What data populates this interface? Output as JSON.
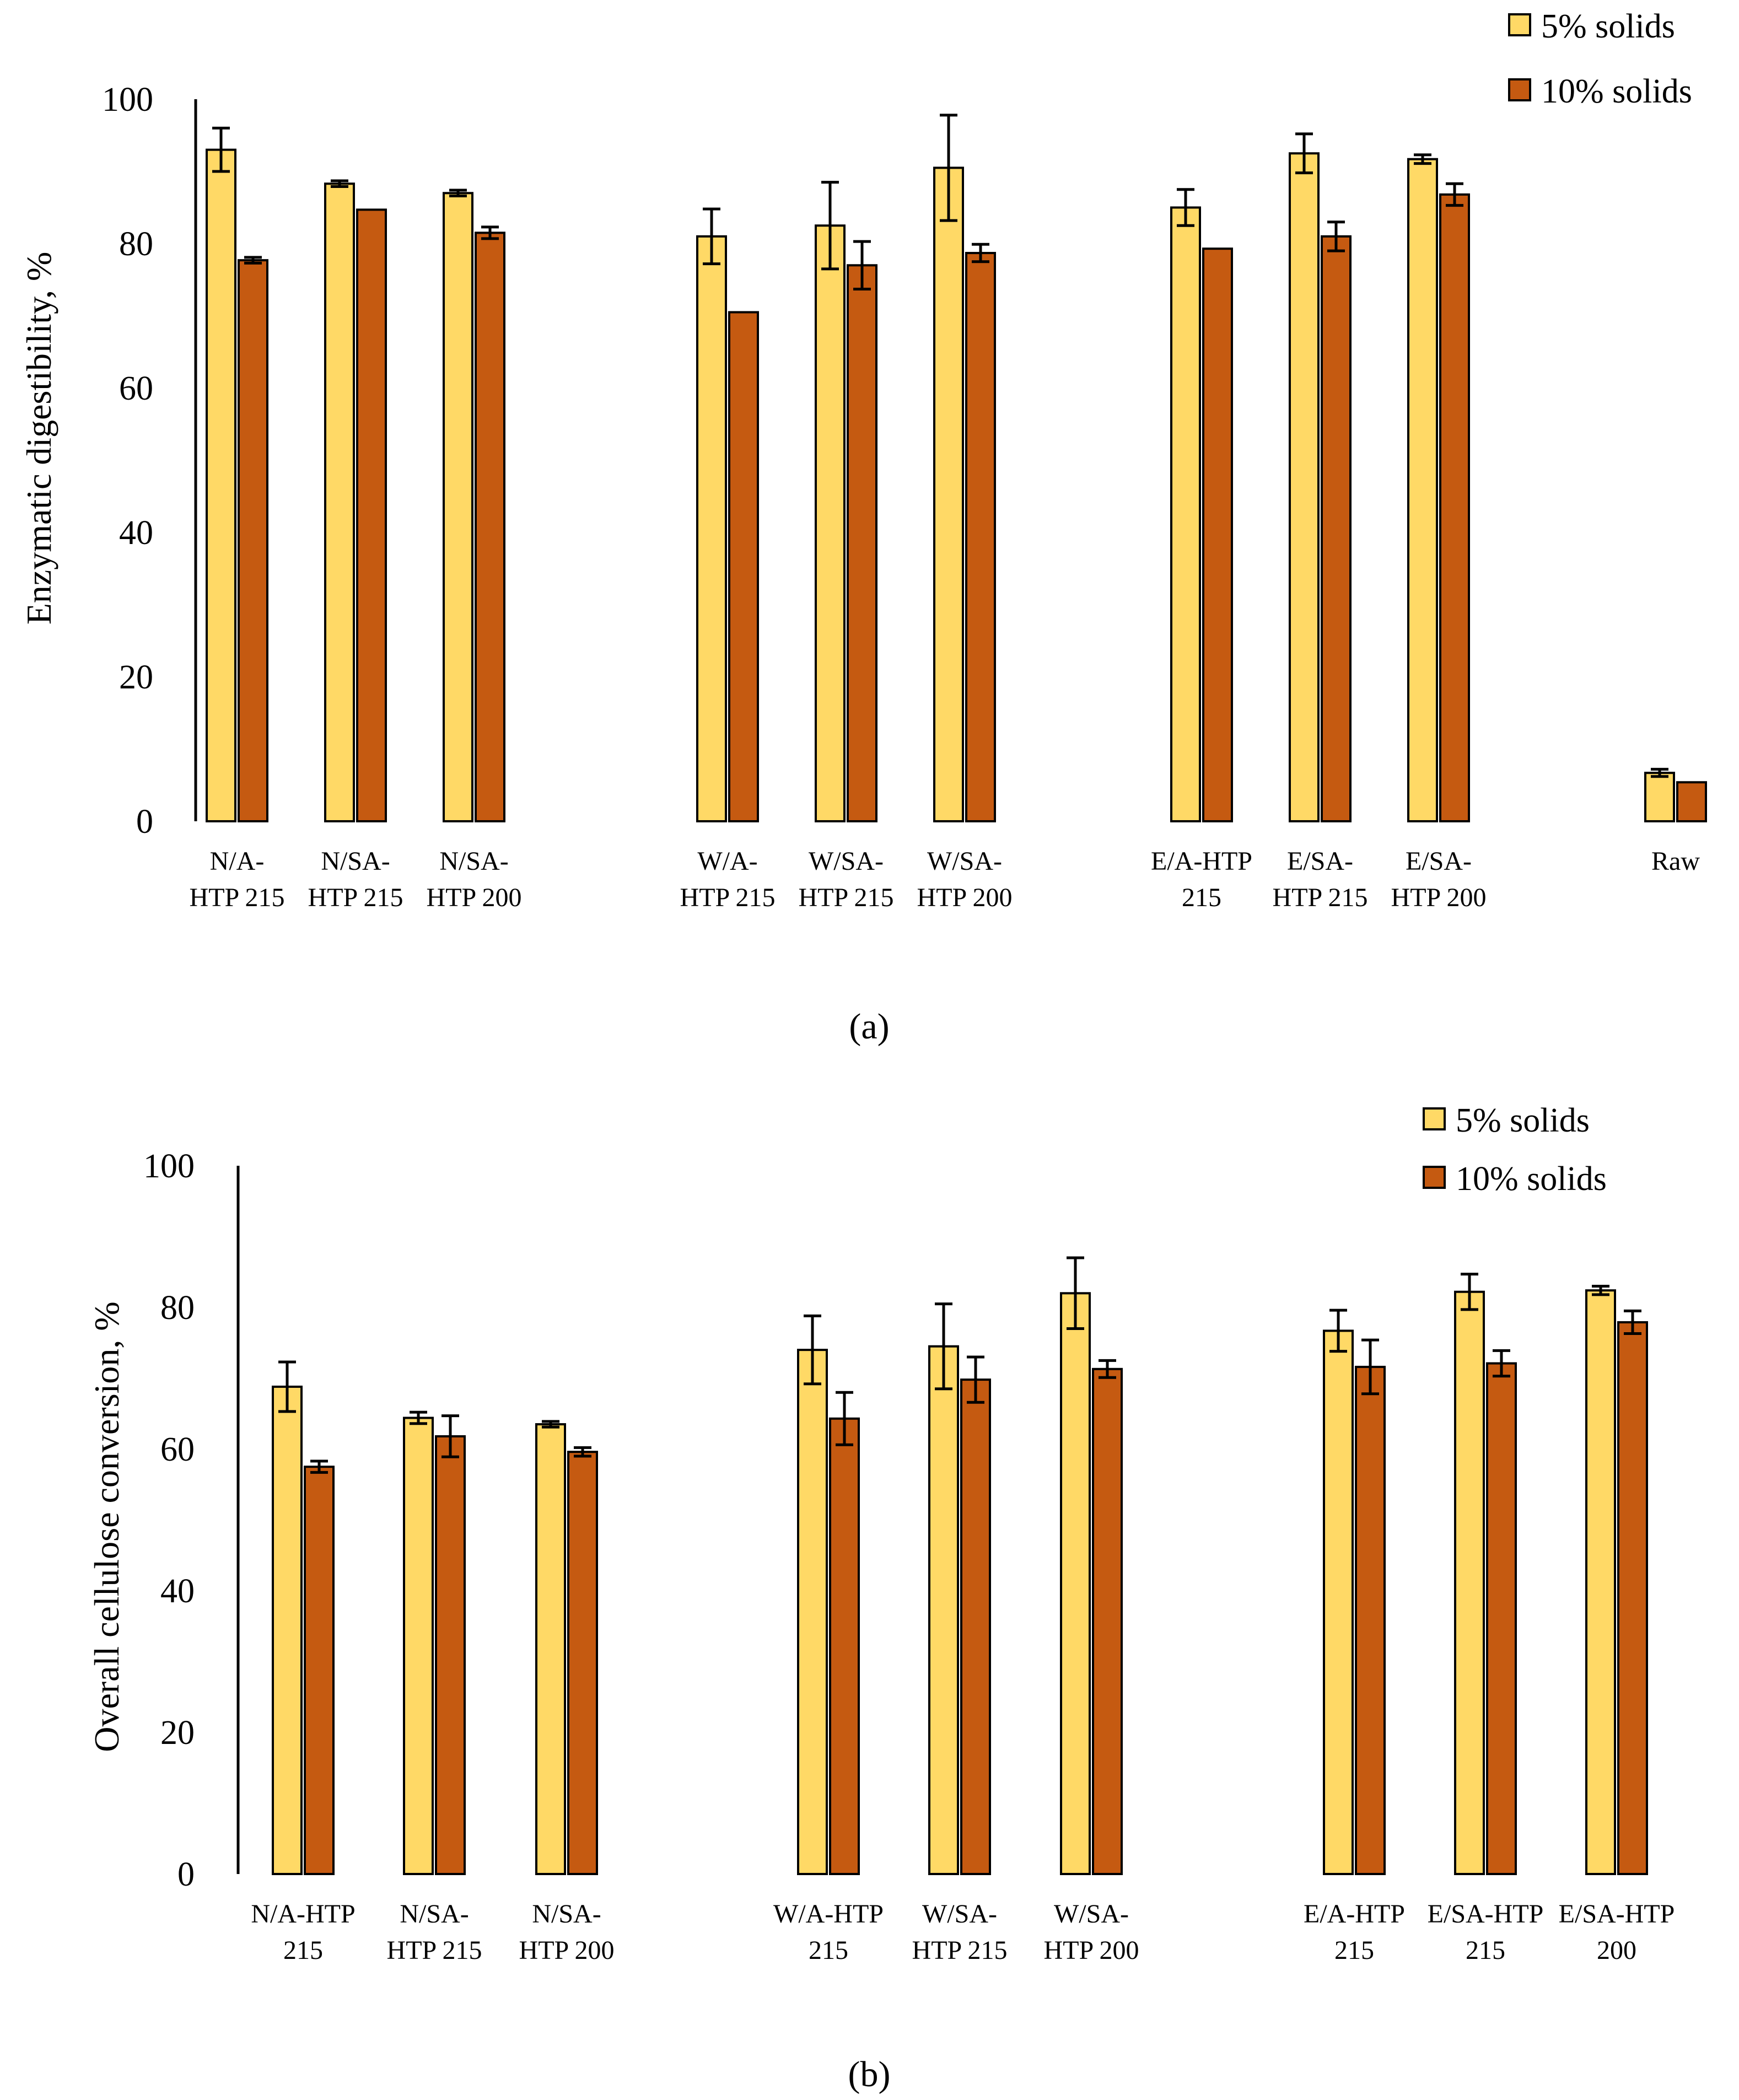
{
  "colors": {
    "solids_5": "#ffd966",
    "solids_10": "#c55a11",
    "stroke": "#000000"
  },
  "chart_data": [
    {
      "type": "bar",
      "panel_label": "(a)",
      "ylabel": "Enzymatic digestibility, %",
      "ylim": [
        0,
        100
      ],
      "yticks": [
        0,
        20,
        40,
        60,
        80,
        100
      ],
      "categories": [
        [
          "N/A-",
          "HTP 215"
        ],
        [
          "N/SA-",
          "HTP 215"
        ],
        [
          "N/SA-",
          "HTP 200"
        ],
        [
          "W/A-",
          "HTP 215"
        ],
        [
          "W/SA-",
          "HTP 215"
        ],
        [
          "W/SA-",
          "HTP 200"
        ],
        [
          "E/A-HTP",
          "215"
        ],
        [
          "E/SA-",
          "HTP 215"
        ],
        [
          "E/SA-",
          "HTP 200"
        ],
        [
          "Raw"
        ]
      ],
      "groups": [
        [
          0,
          1,
          2
        ],
        [
          3,
          4,
          5
        ],
        [
          6,
          7,
          8
        ],
        [
          9
        ]
      ],
      "legend": "top-right",
      "series": [
        {
          "name": "5% solids",
          "values": [
            93.0,
            88.3,
            87.0,
            81.0,
            82.5,
            90.5,
            85.0,
            92.5,
            91.7,
            6.7
          ],
          "errors": [
            3.0,
            0.4,
            0.4,
            3.8,
            6.0,
            7.3,
            2.5,
            2.7,
            0.6,
            0.5
          ]
        },
        {
          "name": "10% solids",
          "values": [
            77.7,
            84.7,
            81.5,
            70.5,
            77.0,
            78.7,
            79.3,
            81.0,
            86.8,
            5.4
          ],
          "errors": [
            0.4,
            0.0,
            0.8,
            0.0,
            3.3,
            1.2,
            0.0,
            2.0,
            1.5,
            0.0
          ]
        }
      ]
    },
    {
      "type": "bar",
      "panel_label": "(b)",
      "ylabel": "Overall cellulose conversion, %",
      "ylim": [
        0,
        100
      ],
      "yticks": [
        0,
        20,
        40,
        60,
        80,
        100
      ],
      "categories": [
        [
          "N/A-HTP",
          "215"
        ],
        [
          "N/SA-",
          "HTP 215"
        ],
        [
          "N/SA-",
          "HTP 200"
        ],
        [
          "W/A-HTP",
          "215"
        ],
        [
          "W/SA-",
          "HTP 215"
        ],
        [
          "W/SA-",
          "HTP 200"
        ],
        [
          "E/A-HTP",
          "215"
        ],
        [
          "E/SA-HTP",
          "215"
        ],
        [
          "E/SA-HTP",
          "200"
        ]
      ],
      "groups": [
        [
          0,
          1,
          2
        ],
        [
          3,
          4,
          5
        ],
        [
          6,
          7,
          8
        ]
      ],
      "legend": "top-right",
      "series": [
        {
          "name": "5% solids",
          "values": [
            68.8,
            64.4,
            63.5,
            74.0,
            74.5,
            82.0,
            76.7,
            82.2,
            82.4
          ],
          "errors": [
            3.5,
            0.8,
            0.4,
            4.8,
            6.0,
            5.0,
            2.9,
            2.5,
            0.6
          ]
        },
        {
          "name": "10% solids",
          "values": [
            57.5,
            61.8,
            59.6,
            64.3,
            69.8,
            71.3,
            71.6,
            72.1,
            77.9
          ],
          "errors": [
            0.8,
            2.9,
            0.6,
            3.7,
            3.2,
            1.2,
            3.8,
            1.8,
            1.6
          ]
        }
      ]
    }
  ]
}
